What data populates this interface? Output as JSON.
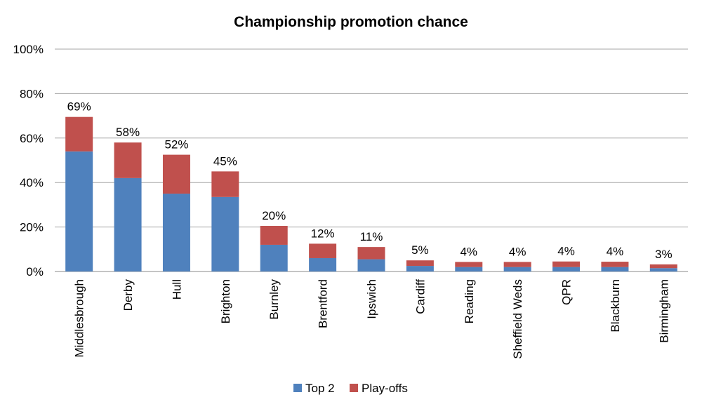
{
  "chart_data": {
    "type": "bar",
    "stacked": true,
    "title": "Championship promotion chance",
    "xlabel": "",
    "ylabel": "",
    "ylim": [
      0,
      100
    ],
    "yticks": [
      "0%",
      "20%",
      "40%",
      "60%",
      "80%",
      "100%"
    ],
    "grid": true,
    "legend_position": "bottom",
    "categories": [
      "Middlesbrough",
      "Derby",
      "Hull",
      "Brighton",
      "Burnley",
      "Brentford",
      "Ipswich",
      "Cardiff",
      "Reading",
      "Sheffield Weds",
      "QPR",
      "Blackburn",
      "Birmingham"
    ],
    "series": [
      {
        "name": "Top 2",
        "color": "#4F81BD",
        "values": [
          54,
          42,
          35,
          33.5,
          12,
          6,
          5.5,
          2.5,
          2,
          2,
          2,
          2,
          1.5
        ]
      },
      {
        "name": "Play-offs",
        "color": "#C0504D",
        "values": [
          15.5,
          16,
          17.5,
          11.5,
          8.5,
          6.5,
          5.5,
          2.5,
          2.3,
          2.3,
          2.5,
          2.4,
          1.7
        ]
      }
    ],
    "data_labels": [
      "69%",
      "58%",
      "52%",
      "45%",
      "20%",
      "12%",
      "11%",
      "5%",
      "4%",
      "4%",
      "4%",
      "4%",
      "3%"
    ]
  }
}
